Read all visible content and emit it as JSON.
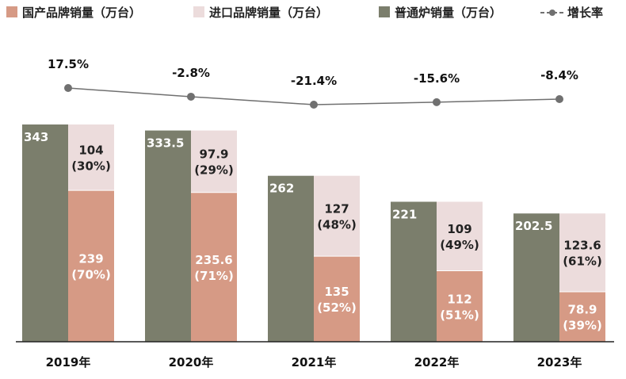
{
  "chart_data": {
    "type": "bar",
    "categories": [
      "2019年",
      "2020年",
      "2021年",
      "2022年",
      "2023年"
    ],
    "series": [
      {
        "name": "国产品牌销量（万台）",
        "values": [
          239,
          235.6,
          135,
          112,
          78.9
        ],
        "share_labels": [
          "(70%)",
          "(71%)",
          "(52%)",
          "(51%)",
          "(39%)"
        ],
        "color": "#d69a85"
      },
      {
        "name": "进口品牌销量（万台）",
        "values": [
          104,
          97.9,
          127,
          109,
          123.6
        ],
        "share_labels": [
          "(30%)",
          "(29%)",
          "(48%)",
          "(49%)",
          "(61%)"
        ],
        "color": "#ecdcdc"
      },
      {
        "name": "普通炉销量（万台）",
        "values": [
          343,
          333.5,
          262,
          221,
          202.5
        ],
        "color": "#7b7e6c"
      },
      {
        "name": "增长率",
        "type": "line",
        "values": [
          17.5,
          -2.8,
          -21.4,
          -15.6,
          -8.4
        ],
        "labels": [
          "17.5%",
          "-2.8%",
          "-21.4%",
          "-15.6%",
          "-8.4%"
        ],
        "color": "#707070"
      }
    ],
    "value_labels": {
      "total": [
        "343",
        "333.5",
        "262",
        "221",
        "202.5"
      ],
      "domestic": [
        "239",
        "235.6",
        "135",
        "112",
        "78.9"
      ],
      "import": [
        "104",
        "97.9",
        "127",
        "109",
        "123.6"
      ]
    },
    "ylim": [
      0,
      343
    ],
    "title": "",
    "xlabel": "",
    "ylabel": ""
  }
}
